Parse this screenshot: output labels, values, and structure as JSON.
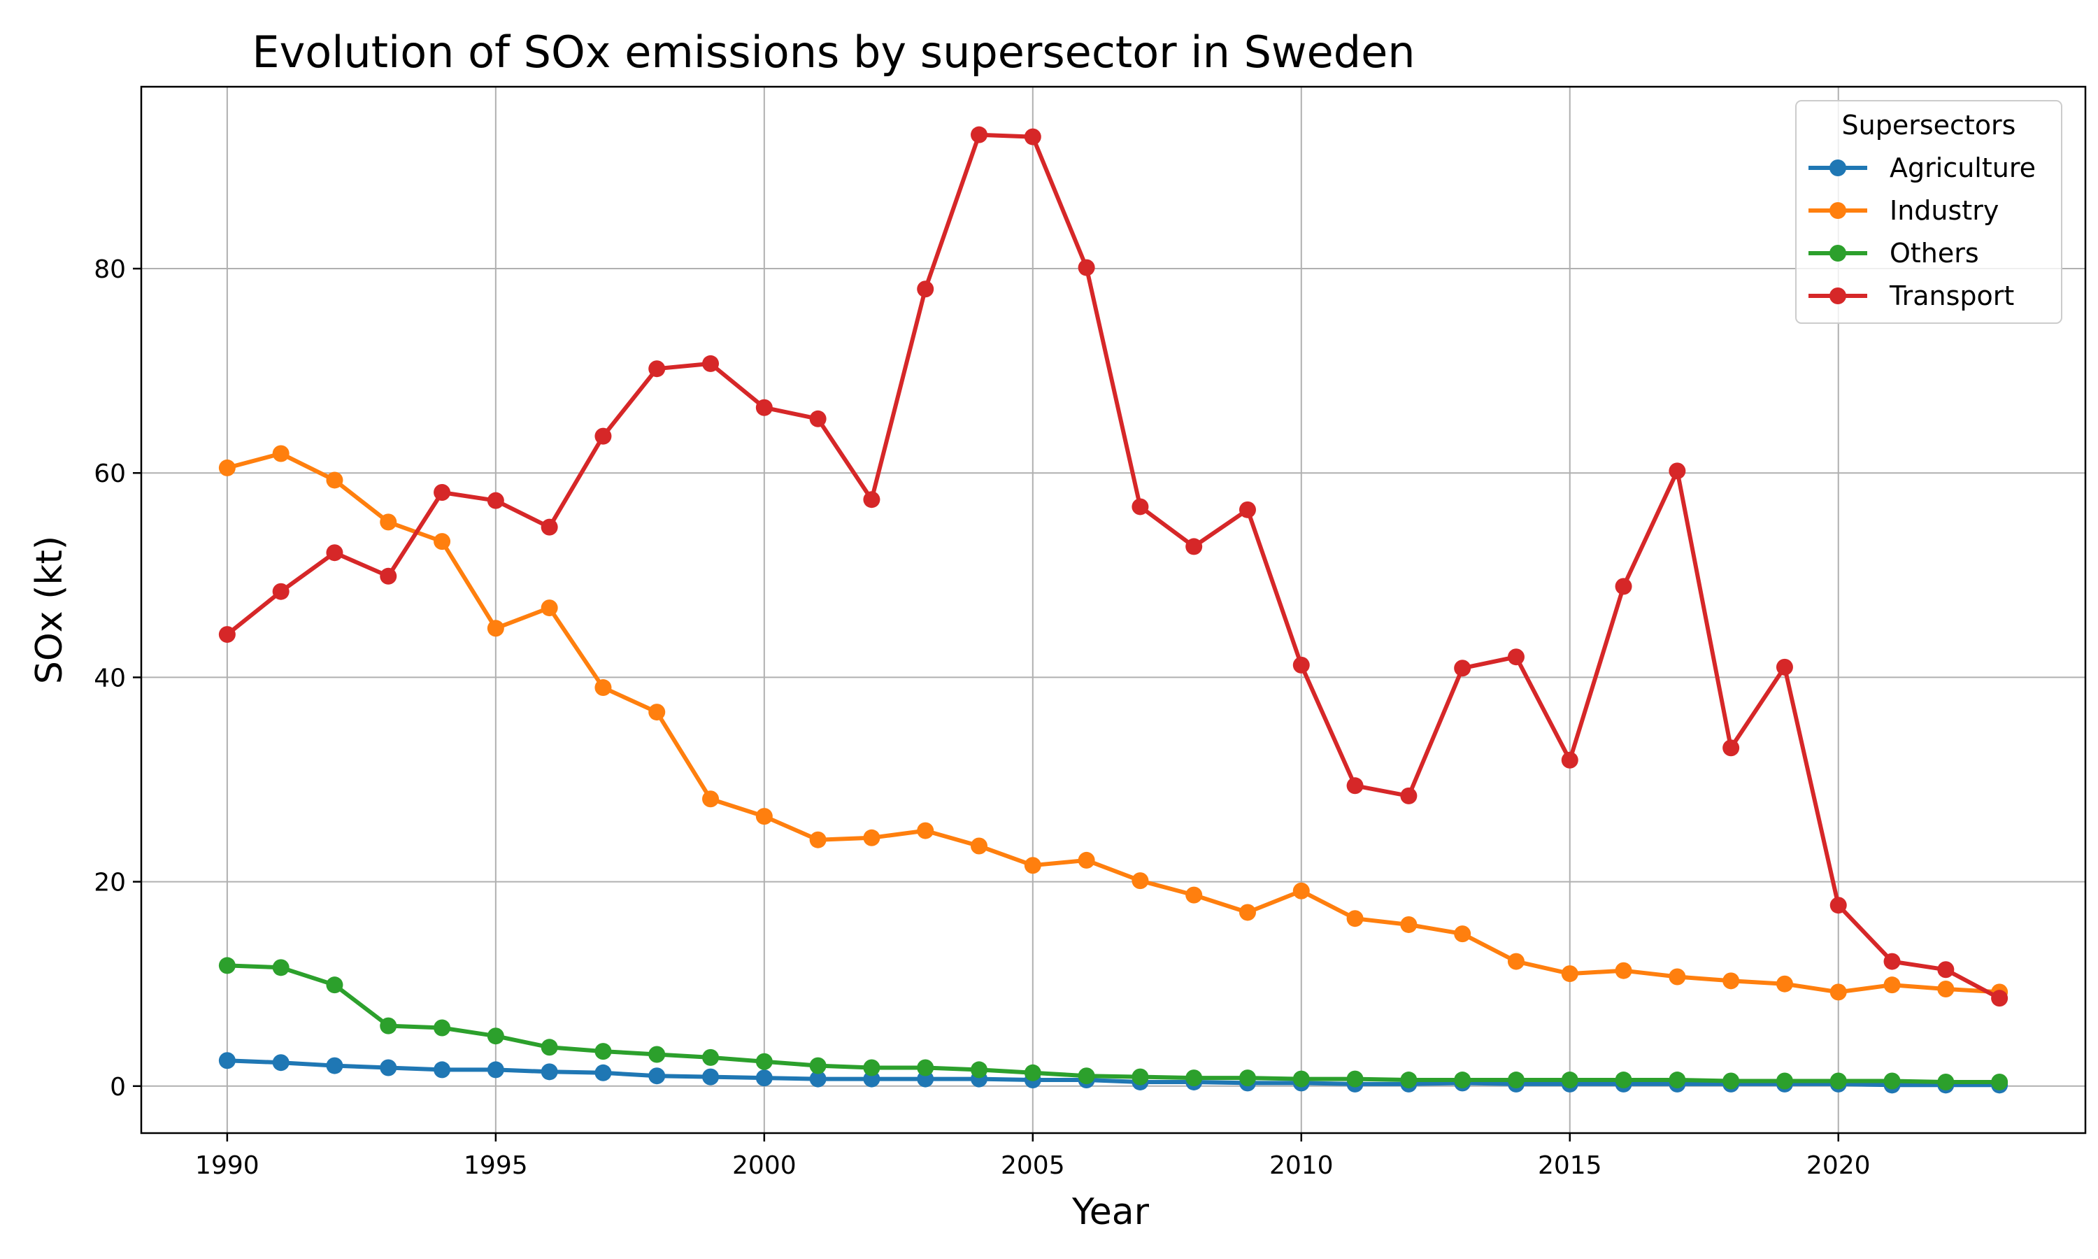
{
  "chart_data": {
    "type": "line",
    "title": "Evolution of SOx emissions by supersector in Sweden",
    "xlabel": "Year",
    "ylabel": "SOx (kt)",
    "xlim": [
      1988.4,
      2024.6
    ],
    "ylim": [
      -4.6,
      97.8
    ],
    "xticks": [
      1990,
      1995,
      2000,
      2005,
      2010,
      2015,
      2020
    ],
    "yticks": [
      0,
      20,
      40,
      60,
      80
    ],
    "grid": true,
    "legend": {
      "title": "Supersectors",
      "placement": "top-right"
    },
    "x": [
      1990,
      1991,
      1992,
      1993,
      1994,
      1995,
      1996,
      1997,
      1998,
      1999,
      2000,
      2001,
      2002,
      2003,
      2004,
      2005,
      2006,
      2007,
      2008,
      2009,
      2010,
      2011,
      2012,
      2013,
      2014,
      2015,
      2016,
      2017,
      2018,
      2019,
      2020,
      2021,
      2022,
      2023
    ],
    "series": [
      {
        "name": "Agriculture",
        "color": "#1f77b4",
        "values": [
          2.5,
          2.3,
          2.0,
          1.8,
          1.6,
          1.6,
          1.4,
          1.3,
          1.0,
          0.9,
          0.8,
          0.7,
          0.7,
          0.7,
          0.7,
          0.6,
          0.6,
          0.4,
          0.4,
          0.3,
          0.3,
          0.2,
          0.2,
          0.3,
          0.2,
          0.2,
          0.2,
          0.2,
          0.2,
          0.2,
          0.2,
          0.1,
          0.1,
          0.1
        ]
      },
      {
        "name": "Industry",
        "color": "#ff7f0e",
        "values": [
          60.5,
          61.9,
          59.3,
          55.2,
          53.3,
          44.8,
          46.8,
          39.0,
          36.6,
          28.1,
          26.4,
          24.1,
          24.3,
          25.0,
          23.5,
          21.6,
          22.1,
          20.1,
          18.7,
          17.0,
          19.1,
          16.4,
          15.8,
          14.9,
          12.2,
          11.0,
          11.3,
          10.7,
          10.3,
          10.0,
          9.2,
          9.9,
          9.5,
          9.2
        ]
      },
      {
        "name": "Others",
        "color": "#2ca02c",
        "values": [
          11.8,
          11.6,
          9.9,
          5.9,
          5.7,
          4.9,
          3.8,
          3.4,
          3.1,
          2.8,
          2.4,
          2.0,
          1.8,
          1.8,
          1.6,
          1.3,
          1.0,
          0.9,
          0.8,
          0.8,
          0.7,
          0.7,
          0.6,
          0.6,
          0.6,
          0.6,
          0.6,
          0.6,
          0.5,
          0.5,
          0.5,
          0.5,
          0.4,
          0.4
        ]
      },
      {
        "name": "Transport",
        "color": "#d62728",
        "values": [
          44.2,
          48.4,
          52.2,
          49.9,
          58.1,
          57.3,
          54.7,
          63.6,
          70.2,
          70.7,
          66.4,
          65.3,
          57.4,
          78.0,
          93.1,
          92.9,
          80.1,
          56.7,
          52.8,
          56.4,
          41.2,
          29.4,
          28.4,
          40.9,
          42.0,
          31.9,
          48.9,
          60.2,
          33.1,
          41.0,
          17.7,
          12.2,
          11.4,
          8.6
        ]
      }
    ]
  }
}
